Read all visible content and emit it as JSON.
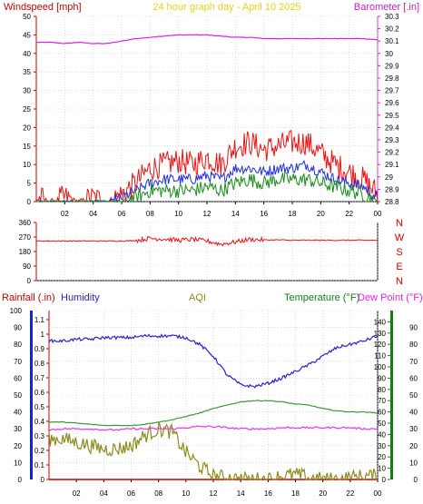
{
  "title": "24 hour graph day - April 10 2025",
  "colors": {
    "wind_red": "#ee1111",
    "wind_blue": "#1e2ee6",
    "wind_green": "#1a8a1a",
    "baro": "#dd22dd",
    "dir_red": "#ee1111",
    "humidity": "#2424cc",
    "aqi": "#8c8c1e",
    "temp": "#3a9a3a",
    "dew": "#ee33ee",
    "rain": "#cc0000",
    "axis_blue": "#1122dd",
    "axis_green": "#1a7a1a"
  },
  "chart_data": [
    {
      "type": "line",
      "ylabel": "Windspeed [mph]",
      "y2label": "Barometer [.in]",
      "ylim": [
        0,
        50
      ],
      "yticks": [
        "0",
        "5",
        "10",
        "15",
        "20",
        "25",
        "30",
        "35",
        "40",
        "45",
        "50"
      ],
      "y2lim": [
        28.8,
        30.3
      ],
      "y2ticks": [
        "28.8",
        "28.9",
        "29",
        "29.1",
        "29.2",
        "29.3",
        "29.4",
        "29.5",
        "29.6",
        "29.7",
        "29.8",
        "29.9",
        "30",
        "30.1",
        "30.2",
        "30.3"
      ],
      "xticks": [
        "02",
        "04",
        "06",
        "08",
        "10",
        "12",
        "14",
        "16",
        "18",
        "20",
        "22",
        "00"
      ],
      "x_hours": [
        0,
        1,
        2,
        3,
        4,
        5,
        6,
        7,
        8,
        9,
        10,
        11,
        12,
        13,
        14,
        15,
        16,
        17,
        18,
        19,
        20,
        21,
        22,
        23,
        24
      ],
      "series": [
        {
          "id": "barometer",
          "axis": "right",
          "values": [
            30.09,
            30.09,
            30.08,
            30.09,
            30.08,
            30.08,
            30.1,
            30.12,
            30.13,
            30.14,
            30.15,
            30.15,
            30.15,
            30.14,
            30.13,
            30.13,
            30.12,
            30.12,
            30.12,
            30.12,
            30.12,
            30.12,
            30.12,
            30.12,
            30.11
          ]
        },
        {
          "id": "wind_gust",
          "axis": "left",
          "values": [
            1,
            0,
            1,
            0,
            1,
            0,
            2,
            5,
            9,
            10,
            11,
            10,
            12,
            10,
            15,
            16,
            14,
            15,
            16,
            16,
            13,
            10,
            8,
            6,
            2
          ]
        },
        {
          "id": "wind_avg",
          "axis": "left",
          "values": [
            0,
            0,
            0,
            0,
            0,
            0,
            1,
            3,
            5,
            6,
            6,
            6,
            7,
            6,
            9,
            9,
            8,
            9,
            9,
            10,
            8,
            6,
            5,
            4,
            1
          ]
        },
        {
          "id": "wind_min",
          "axis": "left",
          "values": [
            0,
            0,
            0,
            0,
            0,
            0,
            0,
            1,
            3,
            3,
            3,
            3,
            4,
            3,
            5,
            6,
            5,
            6,
            6,
            6,
            5,
            4,
            3,
            2,
            0
          ]
        }
      ]
    },
    {
      "type": "line",
      "right_labels": [
        "N",
        "W",
        "S",
        "E",
        "N"
      ],
      "ylim": [
        0,
        360
      ],
      "yticks": [
        "0",
        "90",
        "180",
        "270",
        "360"
      ],
      "series": [
        {
          "id": "wind_dir",
          "values": [
            245,
            245,
            245,
            245,
            245,
            245,
            245,
            248,
            262,
            258,
            250,
            255,
            245,
            225,
            240,
            255,
            252,
            252,
            250,
            250,
            250,
            250,
            250,
            250,
            250
          ]
        }
      ]
    },
    {
      "type": "line",
      "ylabel": "Rainfall (.in)",
      "legend": [
        "Humidity",
        "AQI",
        "Temperature (°F)",
        "Dew Point (°F)"
      ],
      "humidity_lim": [
        0,
        100
      ],
      "humidity_ticks": [
        "0",
        "10",
        "20",
        "30",
        "40",
        "50",
        "60",
        "70",
        "80",
        "90",
        "100"
      ],
      "rain_lim": [
        0,
        1.1
      ],
      "rain_ticks": [
        "0",
        "0.1",
        "0.2",
        "0.3",
        "0.4",
        "0.5",
        "0.6",
        "0.7",
        "0.8",
        "0.9",
        "1",
        "1.1"
      ],
      "temp_lim": [
        0,
        150
      ],
      "temp_ticks": [
        "0",
        "10",
        "20",
        "30",
        "40",
        "50",
        "60",
        "70",
        "80",
        "90",
        "100",
        "110",
        "120",
        "130",
        "140"
      ],
      "aqi_lim": [
        0,
        100
      ],
      "aqi_ticks": [
        "0",
        "10",
        "20",
        "30",
        "40",
        "50",
        "60",
        "70",
        "80",
        "90"
      ],
      "xticks": [
        "02",
        "04",
        "06",
        "08",
        "10",
        "12",
        "14",
        "16",
        "18",
        "20",
        "22",
        "00"
      ],
      "x_hours": [
        0,
        1,
        2,
        3,
        4,
        5,
        6,
        7,
        8,
        9,
        10,
        11,
        12,
        13,
        14,
        15,
        16,
        17,
        18,
        19,
        20,
        21,
        22,
        23,
        24
      ],
      "series": [
        {
          "id": "humidity",
          "values": [
            82,
            82,
            83,
            83,
            84,
            84,
            84,
            85,
            85,
            85,
            84,
            80,
            73,
            62,
            56,
            55,
            57,
            60,
            64,
            68,
            73,
            78,
            80,
            82,
            85
          ]
        },
        {
          "id": "temperature",
          "values": [
            51,
            51,
            50,
            49,
            48,
            48,
            48,
            49,
            51,
            53,
            56,
            59,
            63,
            66,
            69,
            70,
            70,
            69,
            67,
            66,
            63,
            61,
            60,
            60,
            59
          ]
        },
        {
          "id": "dew_point",
          "values": [
            44,
            45,
            45,
            45,
            44,
            44,
            45,
            45,
            45,
            45,
            46,
            47,
            47,
            46,
            45,
            45,
            45,
            46,
            46,
            46,
            46,
            46,
            46,
            45,
            45
          ]
        },
        {
          "id": "aqi",
          "values": [
            24,
            24,
            22,
            20,
            18,
            18,
            20,
            26,
            30,
            28,
            16,
            8,
            2,
            1,
            0,
            0,
            0,
            2,
            3,
            1,
            0,
            0,
            1,
            2,
            2
          ]
        },
        {
          "id": "rainfall",
          "values": [
            0,
            0,
            0,
            0,
            0,
            0,
            0,
            0,
            0,
            0,
            0,
            0,
            0,
            0,
            0,
            0,
            0,
            0,
            0,
            0,
            0,
            0,
            0,
            0,
            0
          ]
        }
      ]
    }
  ]
}
